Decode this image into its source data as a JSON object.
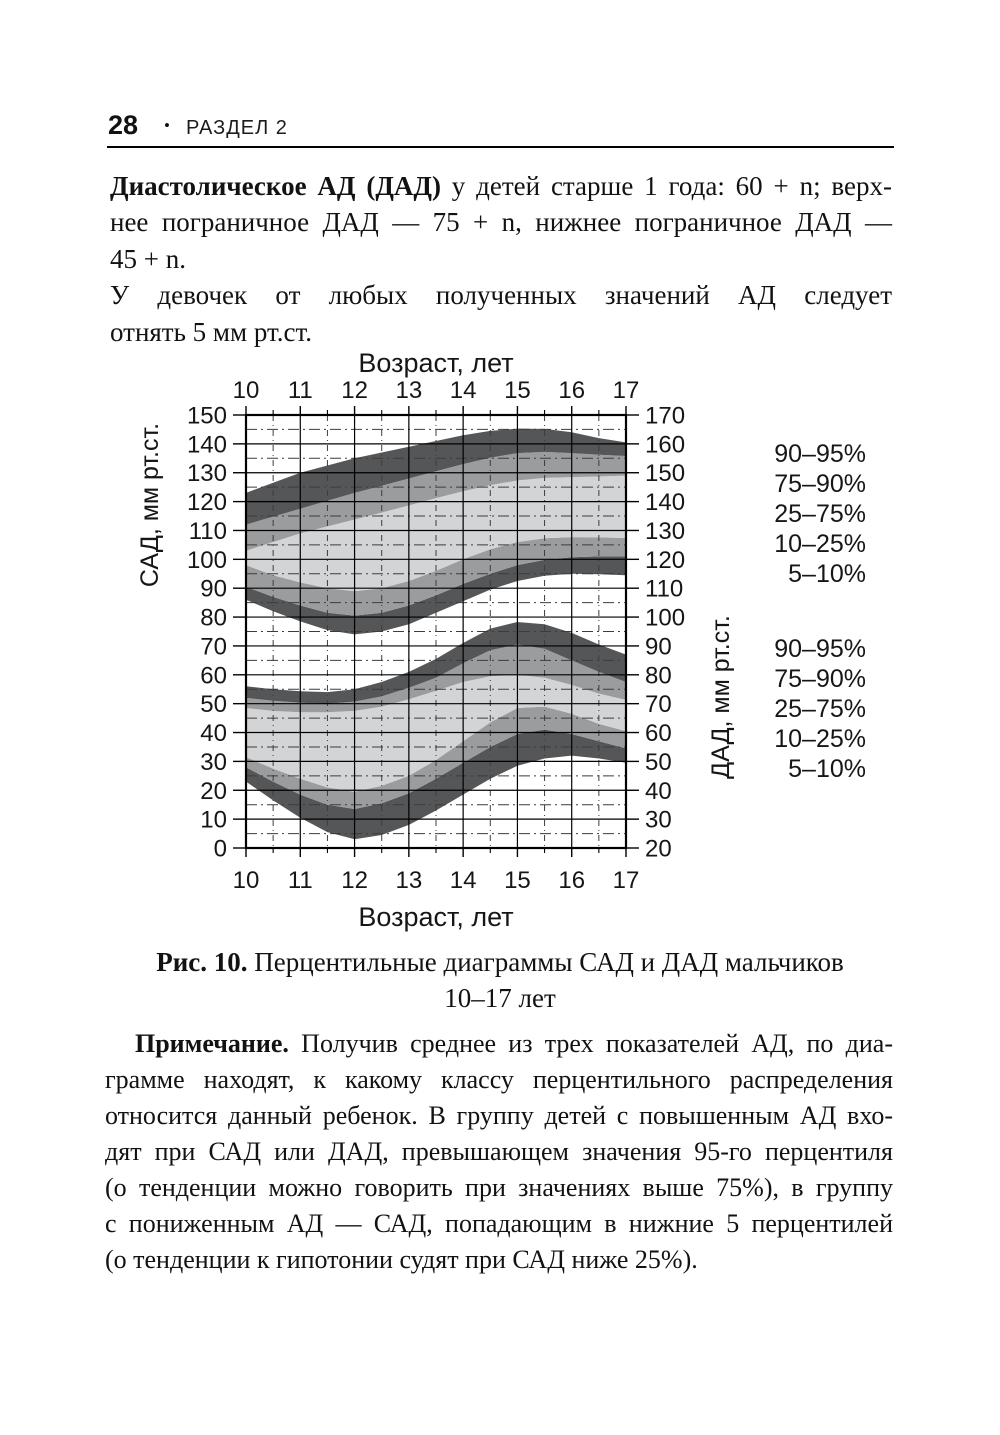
{
  "page": {
    "header": {
      "page_number": "28",
      "bullet": "•",
      "section": "РАЗДЕЛ 2"
    },
    "intro": {
      "lines": [
        {
          "bold": "Диастолическое АД (ДАД)",
          "text": " у детей старше 1 года: 60 + n; верх-",
          "justify": true
        },
        {
          "text": "нее пограничное ДАД — 75 + n, нижнее пограничное ДАД —",
          "justify": true
        },
        {
          "text": "45 + n.",
          "justify": false
        },
        {
          "text": "У девочек от любых полученных значений АД следует",
          "justify": true
        },
        {
          "text": "отнять 5 мм рт.ст.",
          "justify": false
        }
      ]
    },
    "caption": {
      "line1_bold": "Рис. 10.",
      "line1_text": " Перцентильные диаграммы САД и ДАД мальчиков",
      "line2": "10–17 лет"
    },
    "note": {
      "lines": [
        {
          "bold": "Примечание.",
          "text": " Получив среднее из трех показателей АД, по диа-",
          "justify": true,
          "indent": true
        },
        {
          "text": "грамме находят, к какому классу перцентильного распределения",
          "justify": true
        },
        {
          "text": "относится данный ребенок. В группу детей с повышенным АД вхо-",
          "justify": true
        },
        {
          "text": "дят при САД или ДАД, превышающем значения 95-го перцентиля",
          "justify": true
        },
        {
          "text": "(о тенденции можно говорить при значениях выше 75%), в группу",
          "justify": true
        },
        {
          "text": "с пониженным АД — САД, попадающим в нижние 5 перцентилей",
          "justify": true
        },
        {
          "text": "(о тенденции к гипотонии судят при САД ниже 25%).",
          "justify": false
        }
      ]
    }
  },
  "chart_data": {
    "type": "area",
    "title_top": "Возраст, лет",
    "title_bottom": "Возраст, лет",
    "left_axis": {
      "label": "САД, мм рт.ст.",
      "min": 0,
      "max": 150,
      "step": 10
    },
    "right_axis": {
      "label": "ДАД, мм рт.ст.",
      "min": 20,
      "max": 170,
      "step": 10
    },
    "x_axis": {
      "min": 10,
      "max": 17,
      "ticks": [
        10,
        11,
        12,
        13,
        14,
        15,
        16,
        17
      ]
    },
    "legend_sad": [
      "90–95%",
      "75–90%",
      "25–75%",
      "10–25%",
      "5–10%"
    ],
    "legend_dad": [
      "90–95%",
      "75–90%",
      "25–75%",
      "10–25%",
      "5–10%"
    ],
    "band_colors": {
      "dark": "#555658",
      "medium": "#9a9c9e",
      "light": "#d3d4d6"
    },
    "grid": {
      "major_every": 10,
      "minor_every": 5,
      "minor_x_every": 0.5
    },
    "ages": [
      10,
      10.5,
      11,
      11.5,
      12,
      12.5,
      13,
      13.5,
      14,
      14.5,
      15,
      15.5,
      16,
      16.5,
      17
    ],
    "series": [
      {
        "name": "САД",
        "id": "sad",
        "axis": "left",
        "percentiles": {
          "p05": [
            86,
            82,
            78.5,
            75.5,
            74,
            75,
            77.5,
            81.5,
            85.5,
            89.5,
            92.5,
            94.3,
            95,
            94.8,
            94.5
          ],
          "p10": [
            90.5,
            87,
            84,
            81.5,
            80.5,
            81.5,
            84,
            87.5,
            91.5,
            95,
            98,
            99.8,
            100.7,
            101,
            101
          ],
          "p25": [
            98,
            94.5,
            92,
            90,
            89,
            90,
            92.5,
            96,
            100,
            103.5,
            106,
            107.3,
            107.7,
            107.6,
            107.4
          ],
          "p75": [
            103,
            106,
            109,
            111.4,
            113.8,
            116.2,
            118.7,
            121.2,
            123.6,
            125.7,
            127.3,
            128.2,
            128.5,
            128.7,
            129
          ],
          "p90": [
            112,
            114.8,
            117.5,
            120.3,
            123,
            125.5,
            128,
            130.5,
            133,
            135.2,
            136.8,
            137.2,
            136.8,
            136.2,
            135.8
          ],
          "p95": [
            123,
            126.5,
            130,
            132.5,
            135,
            137,
            139,
            141,
            143,
            144.5,
            145.3,
            145.2,
            144,
            142,
            140.5
          ]
        }
      },
      {
        "name": "ДАД",
        "id": "dad",
        "axis": "right",
        "percentiles": {
          "p05": [
            43,
            36.5,
            30.5,
            25.5,
            23,
            24.5,
            28,
            33,
            38.5,
            44,
            48.5,
            51,
            52,
            51,
            49.5
          ],
          "p10": [
            48,
            43,
            38.5,
            35,
            33.5,
            35.5,
            39,
            44,
            49.5,
            55,
            59.5,
            61,
            59.5,
            57,
            54.5
          ],
          "p25": [
            51.5,
            47.5,
            44,
            41,
            39.5,
            41.5,
            45,
            50.5,
            57,
            63.5,
            68.5,
            69,
            66.5,
            63,
            60.5
          ],
          "p75": [
            68.5,
            67.5,
            67,
            67,
            67.5,
            69,
            71.5,
            74.5,
            77.5,
            79.5,
            80,
            79,
            76.5,
            73.5,
            71.3
          ],
          "p90": [
            72,
            71,
            70.3,
            70,
            70.7,
            72.5,
            75.5,
            79,
            84,
            88.5,
            90.5,
            89,
            85,
            81,
            77.5
          ],
          "p95": [
            76,
            75,
            74.3,
            74,
            75,
            77.5,
            81,
            85.5,
            91,
            96,
            98.3,
            97.5,
            94.5,
            90.5,
            87
          ]
        }
      }
    ]
  }
}
